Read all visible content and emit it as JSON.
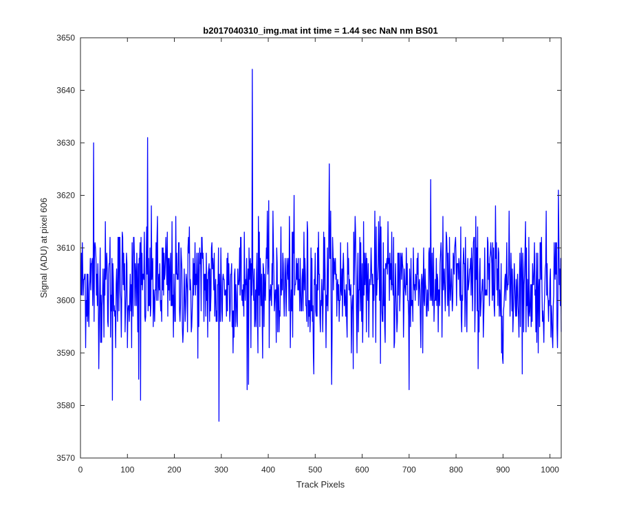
{
  "chart_data": {
    "type": "line",
    "title": "b2017040310_img.mat int time = 1.44 sec  NaN nm BS01",
    "xlabel": "Track Pixels",
    "ylabel": "Signal (ADU) at pixel 606",
    "xlim": [
      0,
      1024
    ],
    "ylim": [
      3570,
      3650
    ],
    "xticks": [
      0,
      100,
      200,
      300,
      400,
      500,
      600,
      700,
      800,
      900,
      1000
    ],
    "yticks": [
      3570,
      3580,
      3590,
      3600,
      3610,
      3620,
      3630,
      3640,
      3650
    ],
    "grid": false,
    "series": [
      {
        "color": "#0000ff",
        "x_start": 1,
        "x_step": 1,
        "count": 1024,
        "mean": 3603,
        "std": 6,
        "anchor_points": [
          [
            28,
            3630
          ],
          [
            68,
            3581
          ],
          [
            124,
            3585
          ],
          [
            128,
            3581
          ],
          [
            143,
            3631
          ],
          [
            295,
            3577
          ],
          [
            366,
            3644
          ],
          [
            355,
            3583
          ],
          [
            530,
            3626
          ],
          [
            700,
            3583
          ],
          [
            1018,
            3621
          ]
        ]
      }
    ]
  }
}
